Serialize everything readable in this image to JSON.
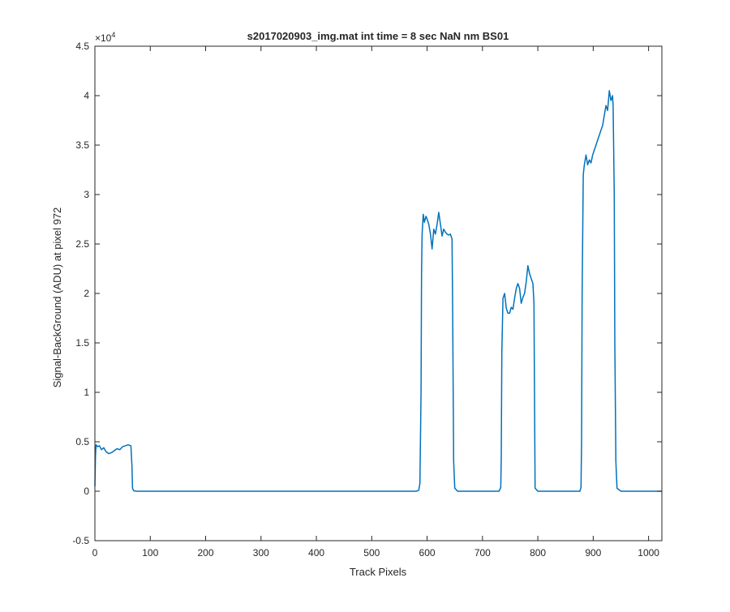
{
  "chart_data": {
    "type": "line",
    "title": "s2017020903_img.mat int time = 8 sec  NaN nm BS01",
    "xlabel": "Track Pixels",
    "ylabel": "Signal-BackGround (ADU) at pixel 972",
    "y_exponent_label": "×10",
    "y_exponent_power": "4",
    "xlim": [
      0,
      1024
    ],
    "ylim": [
      -5000,
      45000
    ],
    "x_ticks": [
      0,
      100,
      200,
      300,
      400,
      500,
      600,
      700,
      800,
      900,
      1000
    ],
    "x_tick_labels": [
      "0",
      "100",
      "200",
      "300",
      "400",
      "500",
      "600",
      "700",
      "800",
      "900",
      "1000"
    ],
    "y_ticks": [
      -5000,
      0,
      5000,
      10000,
      15000,
      20000,
      25000,
      30000,
      35000,
      40000,
      45000
    ],
    "y_tick_labels": [
      "-0.5",
      "0",
      "0.5",
      "1",
      "1.5",
      "2",
      "2.5",
      "3",
      "3.5",
      "4",
      "4.5"
    ],
    "grid": false,
    "series": [
      {
        "color": "#0072BD",
        "x": [
          0,
          1,
          2,
          5,
          8,
          12,
          16,
          20,
          25,
          30,
          35,
          40,
          45,
          50,
          55,
          60,
          65,
          67,
          68,
          70,
          75,
          100,
          200,
          300,
          400,
          500,
          580,
          585,
          587,
          589,
          590,
          591,
          593,
          595,
          598,
          600,
          603,
          606,
          609,
          612,
          615,
          618,
          621,
          624,
          627,
          630,
          633,
          636,
          639,
          642,
          645,
          646,
          648,
          650,
          655,
          700,
          730,
          733,
          734,
          735,
          737,
          740,
          743,
          746,
          749,
          752,
          755,
          758,
          761,
          764,
          767,
          770,
          773,
          776,
          779,
          782,
          785,
          788,
          791,
          793,
          795,
          800,
          850,
          876,
          878,
          879,
          880,
          882,
          884,
          887,
          890,
          893,
          896,
          899,
          902,
          905,
          908,
          911,
          914,
          917,
          920,
          923,
          926,
          929,
          932,
          935,
          936,
          938,
          939,
          941,
          943,
          950,
          1000,
          1024
        ],
        "values": [
          500,
          3500,
          4700,
          4500,
          4600,
          4200,
          4400,
          4000,
          3800,
          3900,
          4100,
          4300,
          4200,
          4500,
          4600,
          4700,
          4600,
          2500,
          300,
          50,
          0,
          0,
          0,
          0,
          0,
          0,
          0,
          100,
          800,
          10000,
          22000,
          26000,
          28000,
          27200,
          27800,
          27500,
          27000,
          26000,
          24500,
          26500,
          26000,
          27000,
          28200,
          27000,
          25800,
          26500,
          26200,
          26000,
          25900,
          26000,
          25500,
          19000,
          3000,
          300,
          0,
          0,
          0,
          400,
          3500,
          14000,
          19500,
          20000,
          18500,
          18000,
          18000,
          18600,
          18400,
          19500,
          20500,
          21000,
          20500,
          19000,
          19600,
          20000,
          21200,
          22800,
          22000,
          21500,
          21000,
          19000,
          300,
          0,
          0,
          0,
          400,
          5000,
          20000,
          32000,
          33000,
          34000,
          33000,
          33500,
          33200,
          34000,
          34500,
          35000,
          35500,
          36000,
          36500,
          37000,
          38000,
          39000,
          38500,
          40500,
          39500,
          40000,
          39000,
          30000,
          15000,
          3000,
          300,
          0,
          0,
          0
        ]
      }
    ]
  }
}
